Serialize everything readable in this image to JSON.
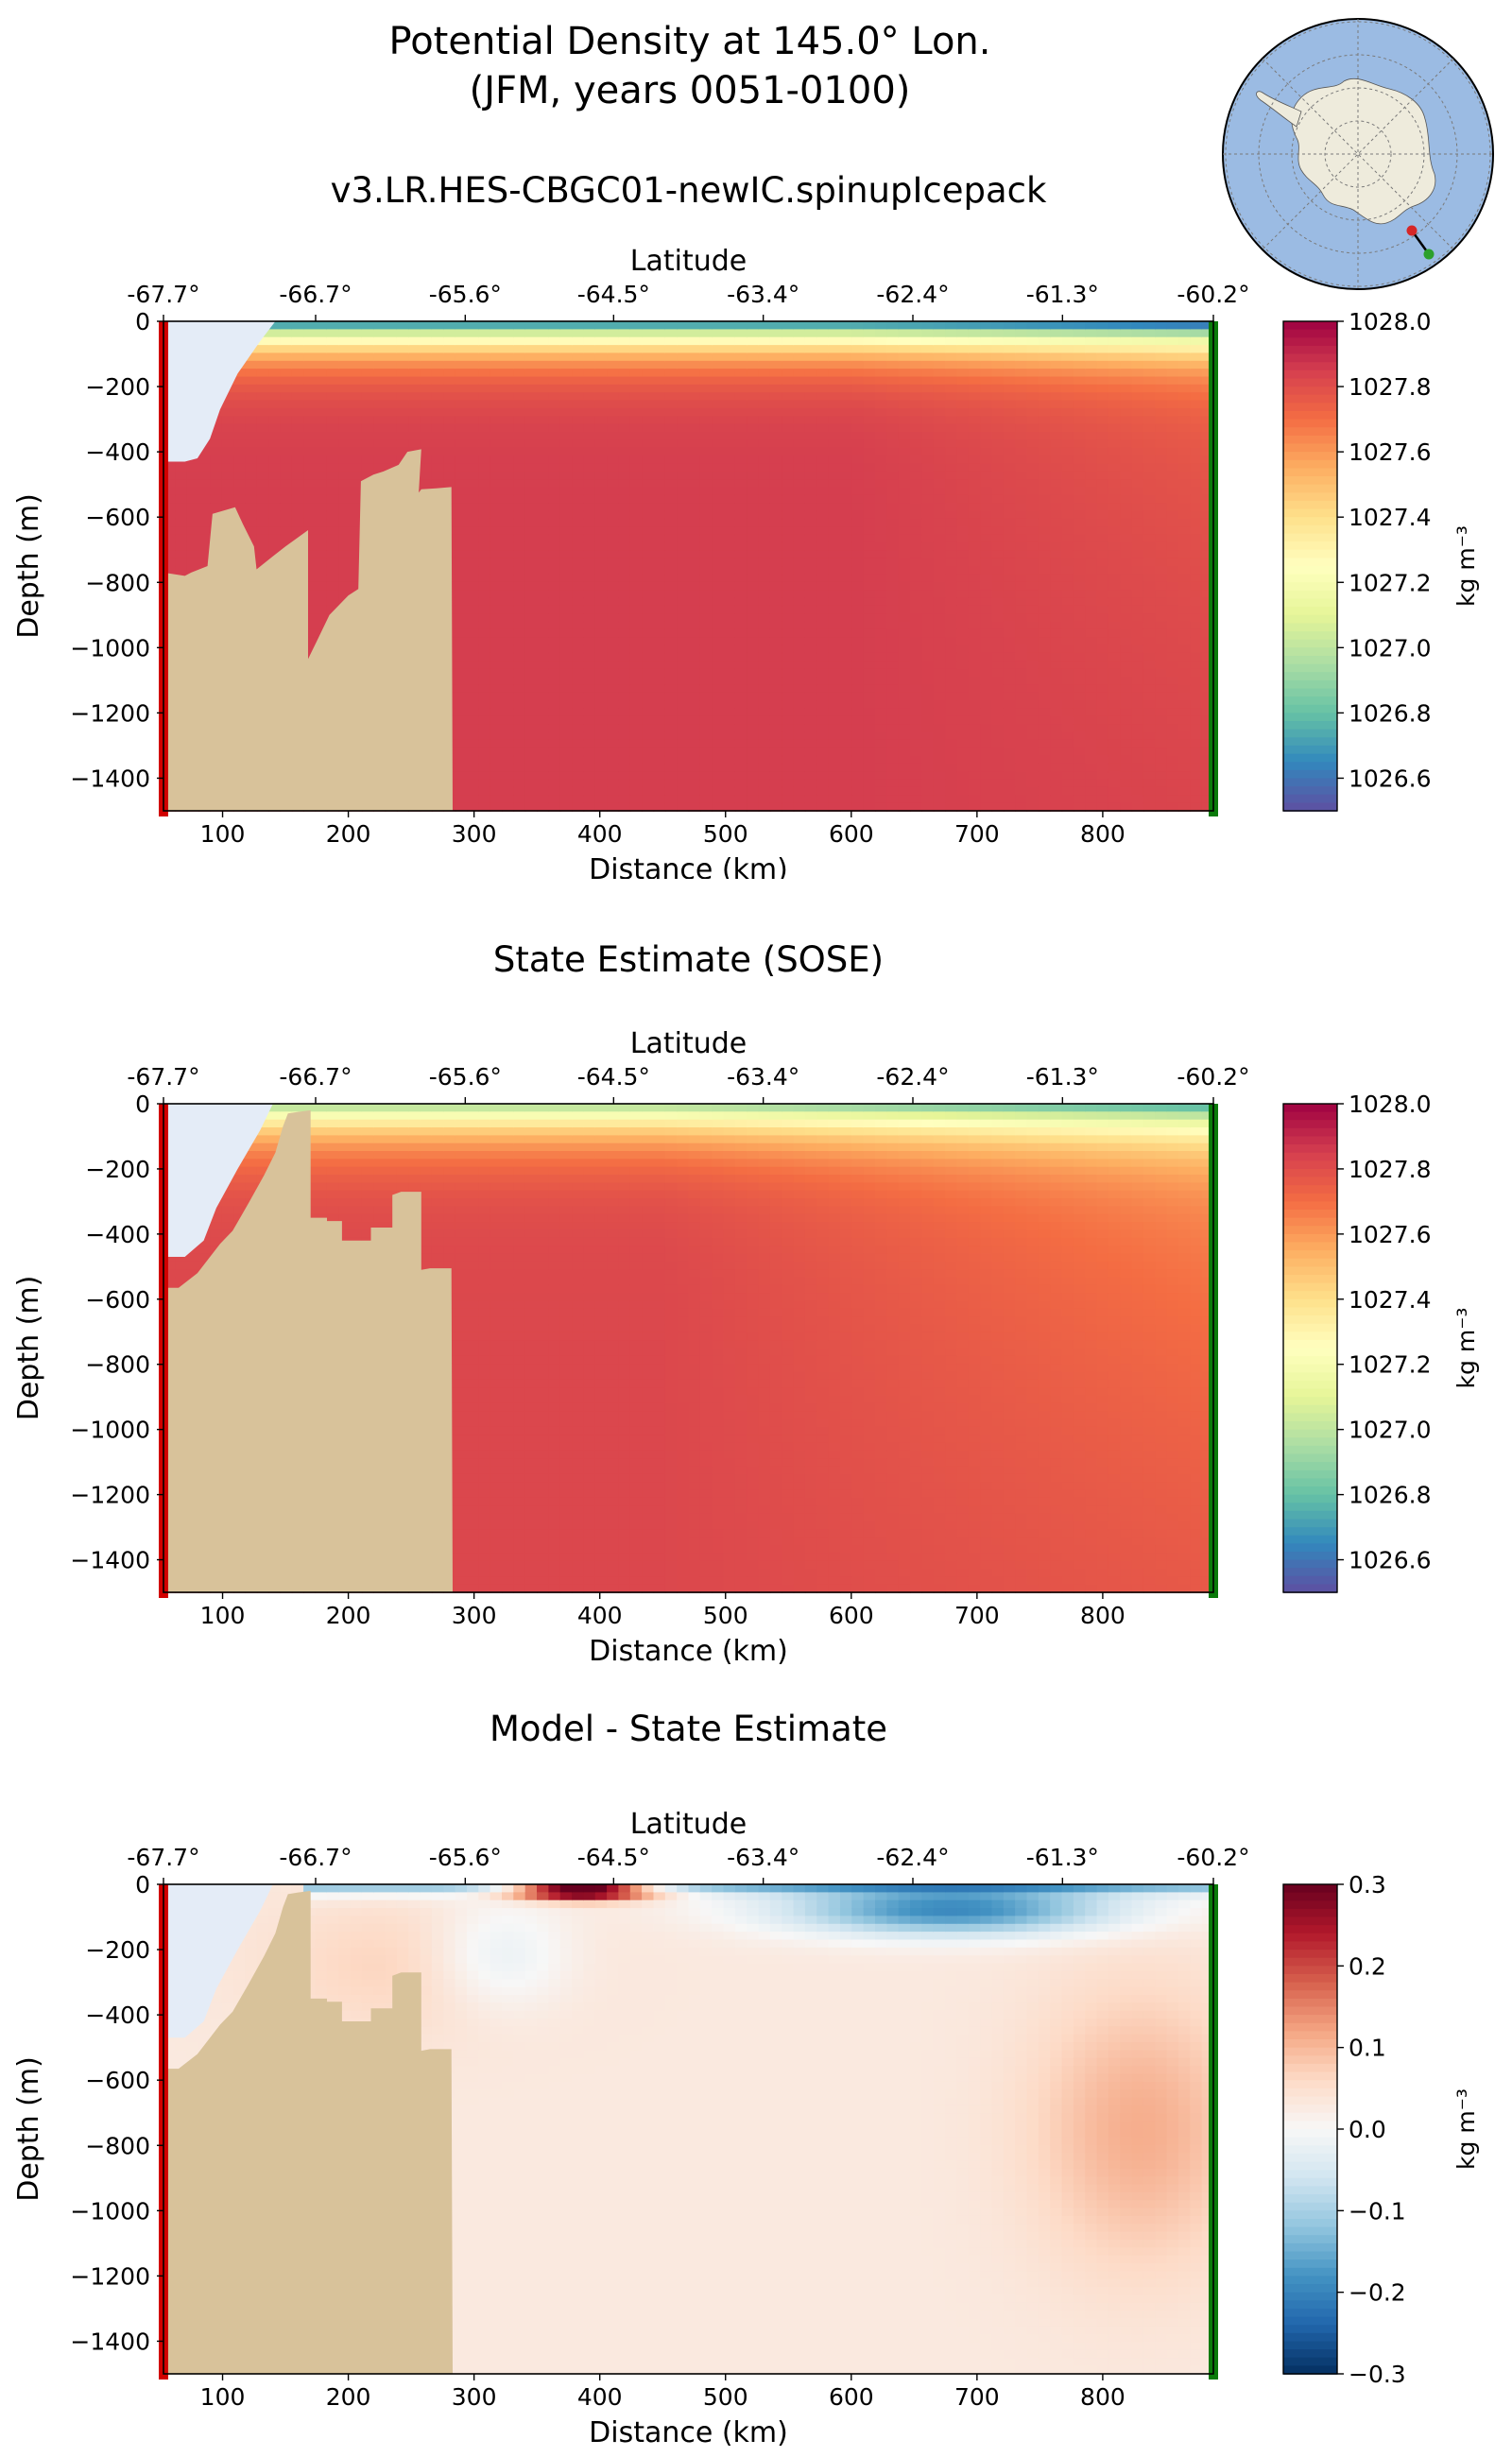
{
  "figure": {
    "title_line1": "Potential Density at 145.0° Lon.",
    "title_line2": "(JFM, years 0051-0100)"
  },
  "inset_map": {
    "region": "Antarctica",
    "transect_start_color": "#d62728",
    "transect_end_color": "#2ca02c"
  },
  "colors": {
    "land": "#d8c29a",
    "ice_shelf": "#e4ecf7",
    "start_marker": "#d10000",
    "end_marker": "#0a7a0a"
  },
  "panels": [
    {
      "title": "v3.LR.HES-CBGC01-newIC.spinupIcepack",
      "top_axis_label": "Latitude",
      "xlabel": "Distance (km)",
      "ylabel": "Depth (m)",
      "colorbar_label": "kg m⁻³",
      "colormap": "Spectral_r",
      "colorbar_ticks": [
        "1028.0",
        "1027.8",
        "1027.6",
        "1027.4",
        "1027.2",
        "1027.0",
        "1026.8",
        "1026.6"
      ]
    },
    {
      "title": "State Estimate (SOSE)",
      "top_axis_label": "Latitude",
      "xlabel": "Distance (km)",
      "ylabel": "Depth (m)",
      "colorbar_label": "kg m⁻³",
      "colormap": "Spectral_r",
      "colorbar_ticks": [
        "1028.0",
        "1027.8",
        "1027.6",
        "1027.4",
        "1027.2",
        "1027.0",
        "1026.8",
        "1026.6"
      ]
    },
    {
      "title": "Model - State Estimate",
      "top_axis_label": "Latitude",
      "xlabel": "Distance (km)",
      "ylabel": "Depth (m)",
      "colorbar_label": "kg m⁻³",
      "colormap": "RdBu_r",
      "colorbar_ticks": [
        "0.3",
        "0.2",
        "0.1",
        "0.0",
        "−0.1",
        "−0.2",
        "−0.3"
      ]
    }
  ],
  "chart_data": [
    {
      "type": "heatmap",
      "title": "v3.LR.HES-CBGC01-newIC.spinupIcepack",
      "xlabel": "Distance (km)",
      "ylabel": "Depth (m)",
      "x2label": "Latitude",
      "xlim": [
        53,
        888
      ],
      "ylim": [
        -1500,
        0
      ],
      "vlim": [
        1026.5,
        1028.0
      ],
      "x_ticks": [
        100,
        200,
        300,
        400,
        500,
        600,
        700,
        800
      ],
      "x_tick_labels": [
        "100",
        "200",
        "300",
        "400",
        "500",
        "600",
        "700",
        "800"
      ],
      "y_ticks": [
        0,
        -200,
        -400,
        -600,
        -800,
        -1000,
        -1200,
        -1400
      ],
      "y_tick_labels": [
        "0",
        "−200",
        "−400",
        "−600",
        "−800",
        "−1000",
        "−1200",
        "−1400"
      ],
      "lat_ticks": [
        53,
        174,
        293,
        411,
        530,
        649,
        768,
        888
      ],
      "lat_tick_labels": [
        "-67.7°",
        "-66.7°",
        "-65.6°",
        "-64.5°",
        "-63.4°",
        "-62.4°",
        "-61.3°",
        "-60.2°"
      ],
      "surface_value": 1026.55,
      "deep_value": 1027.85
    },
    {
      "type": "heatmap",
      "title": "State Estimate (SOSE)",
      "xlabel": "Distance (km)",
      "ylabel": "Depth (m)",
      "x2label": "Latitude",
      "xlim": [
        53,
        888
      ],
      "ylim": [
        -1500,
        0
      ],
      "vlim": [
        1026.5,
        1028.0
      ],
      "x_ticks": [
        100,
        200,
        300,
        400,
        500,
        600,
        700,
        800
      ],
      "x_tick_labels": [
        "100",
        "200",
        "300",
        "400",
        "500",
        "600",
        "700",
        "800"
      ],
      "y_ticks": [
        0,
        -200,
        -400,
        -600,
        -800,
        -1000,
        -1200,
        -1400
      ],
      "y_tick_labels": [
        "0",
        "−200",
        "−400",
        "−600",
        "−800",
        "−1000",
        "−1200",
        "−1400"
      ],
      "lat_ticks": [
        53,
        174,
        293,
        411,
        530,
        649,
        768,
        888
      ],
      "lat_tick_labels": [
        "-67.7°",
        "-66.7°",
        "-65.6°",
        "-64.5°",
        "-63.4°",
        "-62.4°",
        "-61.3°",
        "-60.2°"
      ],
      "surface_value": 1026.9,
      "deep_value": 1027.82
    },
    {
      "type": "heatmap",
      "title": "Model - State Estimate",
      "xlabel": "Distance (km)",
      "ylabel": "Depth (m)",
      "x2label": "Latitude",
      "xlim": [
        53,
        888
      ],
      "ylim": [
        -1500,
        0
      ],
      "vlim": [
        -0.3,
        0.3
      ],
      "x_ticks": [
        100,
        200,
        300,
        400,
        500,
        600,
        700,
        800
      ],
      "x_tick_labels": [
        "100",
        "200",
        "300",
        "400",
        "500",
        "600",
        "700",
        "800"
      ],
      "y_ticks": [
        0,
        -200,
        -400,
        -600,
        -800,
        -1000,
        -1200,
        -1400
      ],
      "y_tick_labels": [
        "0",
        "−200",
        "−400",
        "−600",
        "−800",
        "−1000",
        "−1200",
        "−1400"
      ],
      "lat_ticks": [
        53,
        174,
        293,
        411,
        530,
        649,
        768,
        888
      ],
      "lat_tick_labels": [
        "-67.7°",
        "-66.7°",
        "-65.6°",
        "-64.5°",
        "-63.4°",
        "-62.4°",
        "-61.3°",
        "-60.2°"
      ],
      "features": [
        {
          "name": "surface-negative-band",
          "x": [
            155,
            885
          ],
          "depth": [
            0,
            40
          ],
          "value": -0.28
        },
        {
          "name": "surface-positive-blob",
          "x": [
            330,
            430
          ],
          "depth": [
            0,
            60
          ],
          "value": 0.22
        },
        {
          "name": "offshore-negative-lens",
          "x": [
            580,
            780
          ],
          "depth": [
            20,
            200
          ],
          "value": -0.2
        },
        {
          "name": "shelf-break-negative",
          "x": [
            280,
            360
          ],
          "depth": [
            100,
            400
          ],
          "value": -0.07
        },
        {
          "name": "deep-positive-east",
          "x": [
            720,
            885
          ],
          "depth": [
            500,
            1100
          ],
          "value": 0.1
        }
      ]
    }
  ]
}
